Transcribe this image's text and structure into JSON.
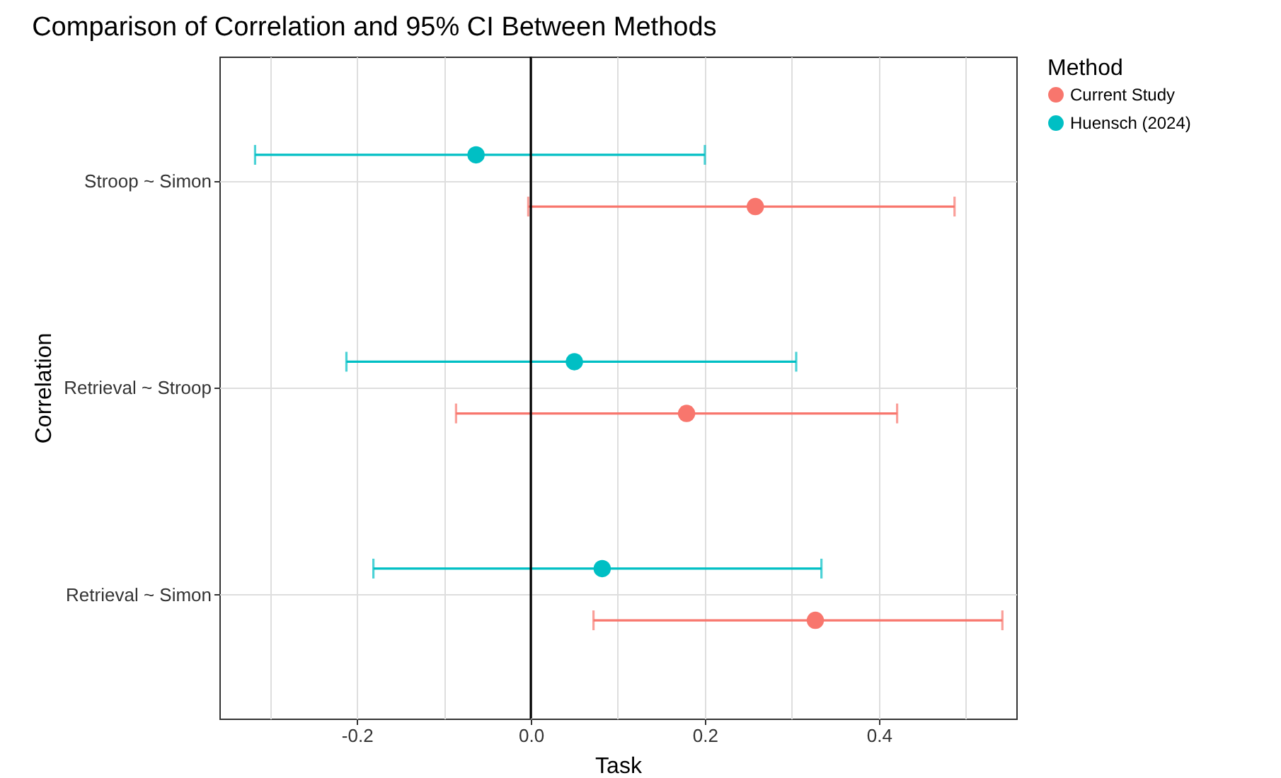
{
  "chart_data": {
    "type": "scatter",
    "orientation": "horizontal",
    "title": "Comparison of Correlation and 95% CI Between Methods",
    "xlabel": "Task",
    "ylabel": "Correlation",
    "legend_title": "Method",
    "categories": [
      "Stroop ~ Simon",
      "Retrieval ~ Stroop",
      "Retrieval ~ Simon"
    ],
    "series": [
      {
        "name": "Current Study",
        "color": "#f8766d",
        "values": [
          0.258,
          0.179,
          0.327
        ],
        "errors": [
          [
            -0.003,
            0.487
          ],
          [
            -0.086,
            0.421
          ],
          [
            0.072,
            0.542
          ]
        ]
      },
      {
        "name": "Huensch (2024)",
        "color": "#00bfc4",
        "values": [
          -0.063,
          0.05,
          0.082
        ],
        "errors": [
          [
            -0.317,
            0.2
          ],
          [
            -0.212,
            0.305
          ],
          [
            -0.181,
            0.334
          ]
        ]
      }
    ],
    "xlim": [
      -0.358,
      0.558
    ],
    "xticks": [
      {
        "value": -0.3,
        "label": null
      },
      -0.2,
      {
        "value": -0.1,
        "label": null
      },
      {
        "value": 0,
        "label": "0.0"
      },
      {
        "value": 0.1,
        "label": null
      },
      0.2,
      {
        "value": 0.3,
        "label": null
      },
      0.4,
      {
        "value": 0.5,
        "label": null
      }
    ],
    "ref_lines": [
      {
        "axis": "x",
        "value": 0,
        "color": "#000000"
      }
    ],
    "grid": true,
    "legend": "right",
    "marker": "circle"
  }
}
